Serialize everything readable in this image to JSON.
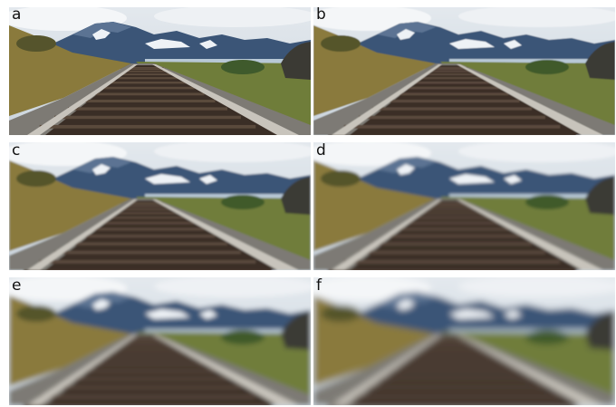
{
  "panels": [
    {
      "label": "a",
      "blur": 0
    },
    {
      "label": "b",
      "blur": 0.6
    },
    {
      "label": "c",
      "blur": 1.1
    },
    {
      "label": "d",
      "blur": 1.6
    },
    {
      "label": "e",
      "blur": 2.6
    },
    {
      "label": "f",
      "blur": 3.6
    }
  ],
  "colors": {
    "sky": "#c9d3dc",
    "mountain": "#3b5577",
    "snow": "#eef2f6",
    "water": "#b8c8d6",
    "grass_left": "#8a7a3c",
    "grass_right": "#6f7d3a",
    "gravel": "#7d7a74",
    "rail": "#c8c4bc",
    "tie": "#3a2e26",
    "rock": "#3b3a34"
  }
}
